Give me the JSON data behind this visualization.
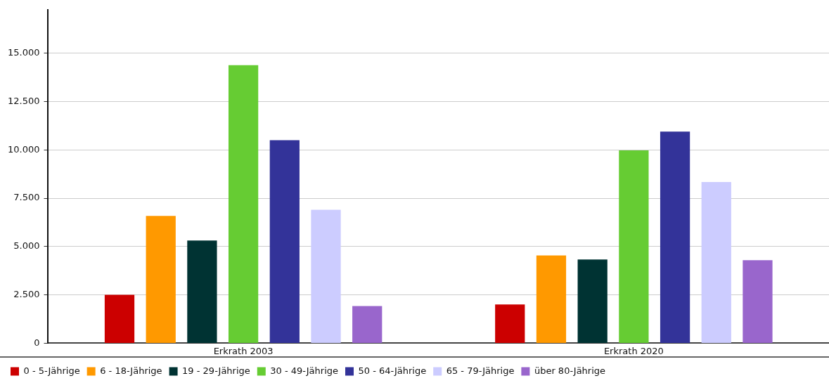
{
  "chart_data": {
    "type": "bar",
    "categories": [
      "Erkrath 2003",
      "Erkrath 2020"
    ],
    "series": [
      {
        "name": "0 - 5-Jährige",
        "color": "#cc0000",
        "values": [
          2500,
          2000
        ]
      },
      {
        "name": "6 - 18-Jährige",
        "color": "#ff9900",
        "values": [
          6580,
          4540
        ]
      },
      {
        "name": "19 - 29-Jährige",
        "color": "#003333",
        "values": [
          5310,
          4330
        ]
      },
      {
        "name": "30 - 49-Jährige",
        "color": "#66cc33",
        "values": [
          14380,
          9970
        ]
      },
      {
        "name": "50 - 64-Jährige",
        "color": "#333399",
        "values": [
          10500,
          10950
        ]
      },
      {
        "name": "65 - 79-Jährige",
        "color": "#ccccff",
        "values": [
          6900,
          8340
        ]
      },
      {
        "name": "über 80-Jährige",
        "color": "#9966cc",
        "values": [
          1920,
          4290
        ]
      }
    ],
    "ylim": [
      0,
      17250
    ],
    "yticks": [
      {
        "value": 0,
        "label": "0"
      },
      {
        "value": 2500,
        "label": "2.500"
      },
      {
        "value": 5000,
        "label": "5.000"
      },
      {
        "value": 7500,
        "label": "7.500"
      },
      {
        "value": 10000,
        "label": "10.000"
      },
      {
        "value": 12500,
        "label": "12.500"
      },
      {
        "value": 15000,
        "label": "15.000"
      }
    ],
    "grid": "y",
    "legend": "bottom"
  }
}
